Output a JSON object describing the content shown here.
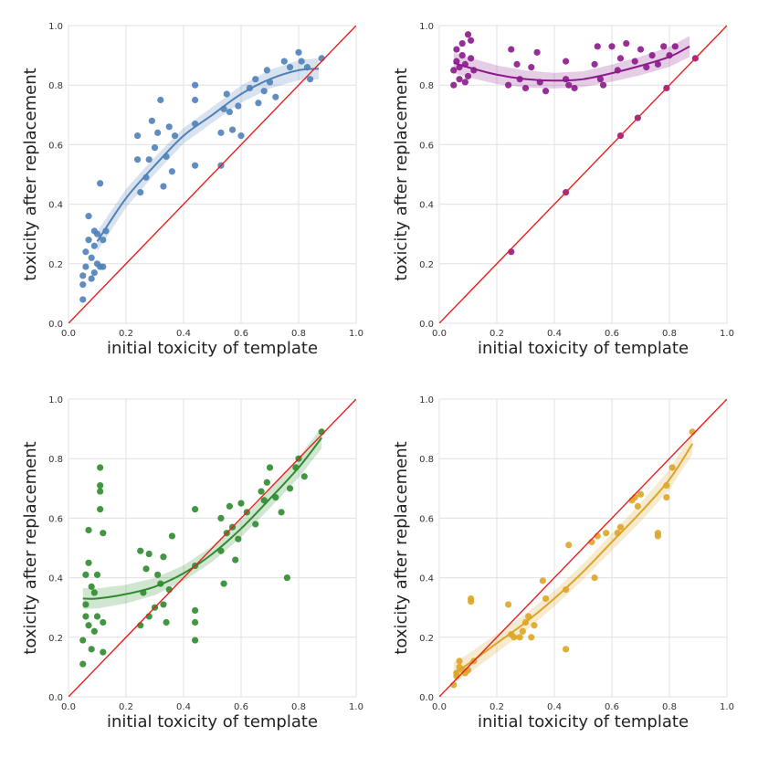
{
  "chart_data": [
    {
      "type": "scatter",
      "panel": "top-left",
      "xlabel": "initial toxicity of template",
      "ylabel": "toxicity after replacement",
      "xlim": [
        0,
        1.0
      ],
      "ylim": [
        0,
        1.0
      ],
      "xticks": [
        "0.0",
        "0.2",
        "0.4",
        "0.6",
        "0.8",
        "1.0"
      ],
      "yticks": [
        "0.0",
        "0.2",
        "0.4",
        "0.6",
        "0.8",
        "1.0"
      ],
      "grid": true,
      "color": "#4f81b8",
      "reference_line": [
        [
          0,
          0
        ],
        [
          1,
          1
        ]
      ],
      "fit_line": [
        [
          0.1,
          0.275
        ],
        [
          0.2,
          0.42
        ],
        [
          0.3,
          0.53
        ],
        [
          0.4,
          0.63
        ],
        [
          0.5,
          0.7
        ],
        [
          0.6,
          0.77
        ],
        [
          0.7,
          0.82
        ],
        [
          0.8,
          0.85
        ],
        [
          0.87,
          0.855
        ]
      ],
      "points": [
        [
          0.05,
          0.08
        ],
        [
          0.05,
          0.13
        ],
        [
          0.05,
          0.16
        ],
        [
          0.06,
          0.19
        ],
        [
          0.06,
          0.24
        ],
        [
          0.07,
          0.28
        ],
        [
          0.07,
          0.36
        ],
        [
          0.08,
          0.15
        ],
        [
          0.08,
          0.22
        ],
        [
          0.09,
          0.17
        ],
        [
          0.09,
          0.26
        ],
        [
          0.09,
          0.31
        ],
        [
          0.1,
          0.2
        ],
        [
          0.1,
          0.3
        ],
        [
          0.11,
          0.47
        ],
        [
          0.11,
          0.19
        ],
        [
          0.12,
          0.28
        ],
        [
          0.12,
          0.19
        ],
        [
          0.13,
          0.31
        ],
        [
          0.24,
          0.63
        ],
        [
          0.24,
          0.55
        ],
        [
          0.25,
          0.44
        ],
        [
          0.27,
          0.49
        ],
        [
          0.28,
          0.55
        ],
        [
          0.29,
          0.68
        ],
        [
          0.3,
          0.59
        ],
        [
          0.31,
          0.64
        ],
        [
          0.32,
          0.75
        ],
        [
          0.33,
          0.46
        ],
        [
          0.34,
          0.56
        ],
        [
          0.35,
          0.66
        ],
        [
          0.36,
          0.51
        ],
        [
          0.37,
          0.63
        ],
        [
          0.44,
          0.53
        ],
        [
          0.44,
          0.67
        ],
        [
          0.44,
          0.75
        ],
        [
          0.44,
          0.8
        ],
        [
          0.53,
          0.53
        ],
        [
          0.53,
          0.64
        ],
        [
          0.54,
          0.72
        ],
        [
          0.55,
          0.77
        ],
        [
          0.56,
          0.71
        ],
        [
          0.57,
          0.65
        ],
        [
          0.59,
          0.73
        ],
        [
          0.6,
          0.63
        ],
        [
          0.63,
          0.79
        ],
        [
          0.65,
          0.82
        ],
        [
          0.66,
          0.74
        ],
        [
          0.68,
          0.78
        ],
        [
          0.69,
          0.85
        ],
        [
          0.7,
          0.81
        ],
        [
          0.72,
          0.76
        ],
        [
          0.75,
          0.88
        ],
        [
          0.77,
          0.86
        ],
        [
          0.8,
          0.91
        ],
        [
          0.81,
          0.88
        ],
        [
          0.83,
          0.86
        ],
        [
          0.84,
          0.82
        ],
        [
          0.88,
          0.89
        ]
      ]
    },
    {
      "type": "scatter",
      "panel": "top-right",
      "xlabel": "initial toxicity of template",
      "ylabel": "toxicity after replacement",
      "xlim": [
        0,
        1.0
      ],
      "ylim": [
        0,
        1.0
      ],
      "xticks": [
        "0.0",
        "0.2",
        "0.4",
        "0.6",
        "0.8",
        "1.0"
      ],
      "yticks": [
        "0.0",
        "0.2",
        "0.4",
        "0.6",
        "0.8",
        "1.0"
      ],
      "grid": true,
      "color": "#8b1a8b",
      "reference_line": [
        [
          0,
          0
        ],
        [
          1,
          1
        ]
      ],
      "fit_line": [
        [
          0.05,
          0.875
        ],
        [
          0.1,
          0.86
        ],
        [
          0.2,
          0.835
        ],
        [
          0.3,
          0.82
        ],
        [
          0.4,
          0.815
        ],
        [
          0.5,
          0.82
        ],
        [
          0.6,
          0.84
        ],
        [
          0.7,
          0.865
        ],
        [
          0.8,
          0.895
        ],
        [
          0.87,
          0.93
        ]
      ],
      "points": [
        [
          0.05,
          0.8
        ],
        [
          0.05,
          0.85
        ],
        [
          0.06,
          0.88
        ],
        [
          0.06,
          0.92
        ],
        [
          0.07,
          0.82
        ],
        [
          0.07,
          0.86
        ],
        [
          0.08,
          0.9
        ],
        [
          0.08,
          0.94
        ],
        [
          0.09,
          0.81
        ],
        [
          0.09,
          0.87
        ],
        [
          0.1,
          0.83
        ],
        [
          0.1,
          0.97
        ],
        [
          0.11,
          0.95
        ],
        [
          0.11,
          0.89
        ],
        [
          0.12,
          0.85
        ],
        [
          0.24,
          0.8
        ],
        [
          0.25,
          0.92
        ],
        [
          0.27,
          0.87
        ],
        [
          0.28,
          0.82
        ],
        [
          0.3,
          0.79
        ],
        [
          0.32,
          0.86
        ],
        [
          0.34,
          0.91
        ],
        [
          0.35,
          0.81
        ],
        [
          0.37,
          0.78
        ],
        [
          0.44,
          0.82
        ],
        [
          0.44,
          0.88
        ],
        [
          0.45,
          0.8
        ],
        [
          0.47,
          0.79
        ],
        [
          0.54,
          0.87
        ],
        [
          0.55,
          0.93
        ],
        [
          0.56,
          0.82
        ],
        [
          0.57,
          0.8
        ],
        [
          0.6,
          0.93
        ],
        [
          0.62,
          0.85
        ],
        [
          0.63,
          0.89
        ],
        [
          0.65,
          0.94
        ],
        [
          0.68,
          0.88
        ],
        [
          0.7,
          0.92
        ],
        [
          0.72,
          0.86
        ],
        [
          0.74,
          0.9
        ],
        [
          0.76,
          0.87
        ],
        [
          0.78,
          0.93
        ],
        [
          0.8,
          0.9
        ],
        [
          0.82,
          0.93
        ],
        [
          0.25,
          0.24
        ],
        [
          0.44,
          0.44
        ],
        [
          0.63,
          0.63
        ],
        [
          0.69,
          0.69
        ],
        [
          0.79,
          0.79
        ],
        [
          0.89,
          0.89
        ]
      ]
    },
    {
      "type": "scatter",
      "panel": "bottom-left",
      "xlabel": "initial toxicity of template",
      "ylabel": "toxicity after replacement",
      "xlim": [
        0,
        1.0
      ],
      "ylim": [
        0,
        1.0
      ],
      "xticks": [
        "0.0",
        "0.2",
        "0.4",
        "0.6",
        "0.8",
        "1.0"
      ],
      "yticks": [
        "0.0",
        "0.2",
        "0.4",
        "0.6",
        "0.8",
        "1.0"
      ],
      "grid": true,
      "color": "#2e8b2e",
      "reference_line": [
        [
          0,
          0
        ],
        [
          1,
          1
        ]
      ],
      "fit_line": [
        [
          0.05,
          0.33
        ],
        [
          0.1,
          0.33
        ],
        [
          0.2,
          0.345
        ],
        [
          0.3,
          0.37
        ],
        [
          0.4,
          0.415
        ],
        [
          0.5,
          0.48
        ],
        [
          0.6,
          0.565
        ],
        [
          0.7,
          0.665
        ],
        [
          0.8,
          0.77
        ],
        [
          0.88,
          0.87
        ]
      ],
      "points": [
        [
          0.05,
          0.11
        ],
        [
          0.05,
          0.19
        ],
        [
          0.06,
          0.27
        ],
        [
          0.06,
          0.31
        ],
        [
          0.06,
          0.41
        ],
        [
          0.07,
          0.45
        ],
        [
          0.07,
          0.56
        ],
        [
          0.07,
          0.24
        ],
        [
          0.08,
          0.37
        ],
        [
          0.08,
          0.16
        ],
        [
          0.09,
          0.22
        ],
        [
          0.09,
          0.35
        ],
        [
          0.1,
          0.27
        ],
        [
          0.1,
          0.41
        ],
        [
          0.11,
          0.71
        ],
        [
          0.11,
          0.77
        ],
        [
          0.11,
          0.69
        ],
        [
          0.11,
          0.63
        ],
        [
          0.12,
          0.55
        ],
        [
          0.12,
          0.15
        ],
        [
          0.12,
          0.25
        ],
        [
          0.25,
          0.49
        ],
        [
          0.25,
          0.24
        ],
        [
          0.26,
          0.35
        ],
        [
          0.27,
          0.43
        ],
        [
          0.28,
          0.27
        ],
        [
          0.28,
          0.48
        ],
        [
          0.3,
          0.3
        ],
        [
          0.31,
          0.41
        ],
        [
          0.32,
          0.38
        ],
        [
          0.33,
          0.47
        ],
        [
          0.33,
          0.31
        ],
        [
          0.34,
          0.25
        ],
        [
          0.35,
          0.36
        ],
        [
          0.36,
          0.54
        ],
        [
          0.44,
          0.19
        ],
        [
          0.44,
          0.25
        ],
        [
          0.44,
          0.29
        ],
        [
          0.44,
          0.44
        ],
        [
          0.44,
          0.63
        ],
        [
          0.53,
          0.49
        ],
        [
          0.53,
          0.6
        ],
        [
          0.54,
          0.38
        ],
        [
          0.55,
          0.55
        ],
        [
          0.56,
          0.64
        ],
        [
          0.57,
          0.57
        ],
        [
          0.58,
          0.46
        ],
        [
          0.59,
          0.53
        ],
        [
          0.6,
          0.65
        ],
        [
          0.62,
          0.62
        ],
        [
          0.65,
          0.58
        ],
        [
          0.67,
          0.69
        ],
        [
          0.68,
          0.66
        ],
        [
          0.69,
          0.72
        ],
        [
          0.7,
          0.77
        ],
        [
          0.72,
          0.67
        ],
        [
          0.74,
          0.62
        ],
        [
          0.76,
          0.4
        ],
        [
          0.77,
          0.7
        ],
        [
          0.79,
          0.77
        ],
        [
          0.8,
          0.8
        ],
        [
          0.82,
          0.74
        ],
        [
          0.88,
          0.89
        ]
      ]
    },
    {
      "type": "scatter",
      "panel": "bottom-right",
      "xlabel": "initial toxicity of template",
      "ylabel": "toxicity after replacement",
      "xlim": [
        0,
        1.0
      ],
      "ylim": [
        0,
        1.0
      ],
      "xticks": [
        "0.0",
        "0.2",
        "0.4",
        "0.6",
        "0.8",
        "1.0"
      ],
      "yticks": [
        "0.0",
        "0.2",
        "0.4",
        "0.6",
        "0.8",
        "1.0"
      ],
      "grid": true,
      "color": "#dba526",
      "reference_line": [
        [
          0,
          0
        ],
        [
          1,
          1
        ]
      ],
      "fit_line": [
        [
          0.05,
          0.08
        ],
        [
          0.1,
          0.11
        ],
        [
          0.2,
          0.18
        ],
        [
          0.3,
          0.25
        ],
        [
          0.4,
          0.33
        ],
        [
          0.5,
          0.42
        ],
        [
          0.6,
          0.52
        ],
        [
          0.7,
          0.62
        ],
        [
          0.8,
          0.73
        ],
        [
          0.88,
          0.85
        ]
      ],
      "points": [
        [
          0.05,
          0.04
        ],
        [
          0.06,
          0.07
        ],
        [
          0.06,
          0.08
        ],
        [
          0.07,
          0.1
        ],
        [
          0.07,
          0.12
        ],
        [
          0.08,
          0.09
        ],
        [
          0.09,
          0.08
        ],
        [
          0.1,
          0.09
        ],
        [
          0.11,
          0.32
        ],
        [
          0.11,
          0.33
        ],
        [
          0.12,
          0.12
        ],
        [
          0.24,
          0.31
        ],
        [
          0.25,
          0.21
        ],
        [
          0.26,
          0.2
        ],
        [
          0.28,
          0.2
        ],
        [
          0.29,
          0.22
        ],
        [
          0.3,
          0.25
        ],
        [
          0.31,
          0.27
        ],
        [
          0.32,
          0.2
        ],
        [
          0.33,
          0.24
        ],
        [
          0.36,
          0.39
        ],
        [
          0.37,
          0.33
        ],
        [
          0.44,
          0.16
        ],
        [
          0.44,
          0.36
        ],
        [
          0.45,
          0.51
        ],
        [
          0.53,
          0.52
        ],
        [
          0.54,
          0.4
        ],
        [
          0.55,
          0.54
        ],
        [
          0.58,
          0.55
        ],
        [
          0.62,
          0.55
        ],
        [
          0.63,
          0.57
        ],
        [
          0.67,
          0.66
        ],
        [
          0.68,
          0.67
        ],
        [
          0.69,
          0.64
        ],
        [
          0.7,
          0.68
        ],
        [
          0.76,
          0.54
        ],
        [
          0.76,
          0.55
        ],
        [
          0.79,
          0.67
        ],
        [
          0.79,
          0.71
        ],
        [
          0.81,
          0.77
        ],
        [
          0.88,
          0.89
        ]
      ]
    }
  ]
}
